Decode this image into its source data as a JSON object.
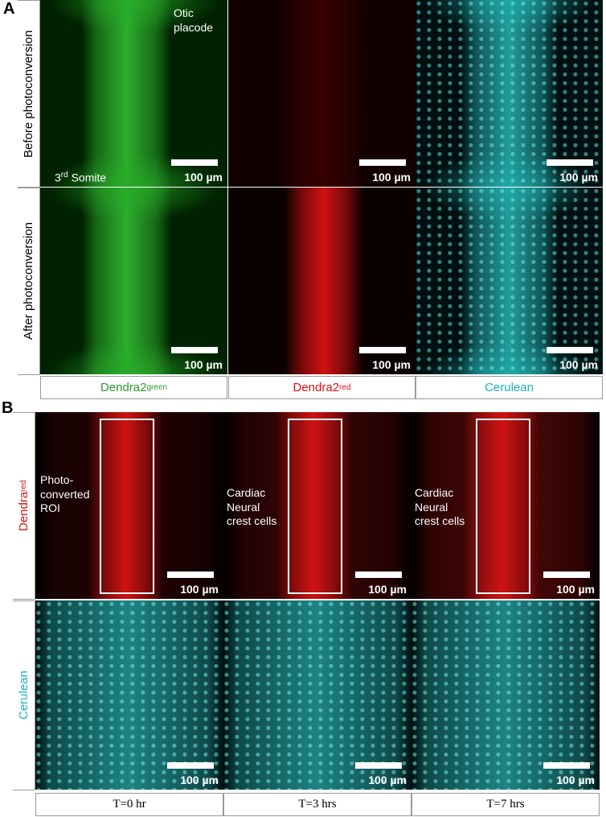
{
  "panel_a": {
    "label": "A",
    "row_labels": [
      "Before photoconversion",
      "After photoconversion"
    ],
    "column_labels": [
      {
        "text": "Dendra2",
        "sup": "green"
      },
      {
        "text": "Dendra2",
        "sup": "red"
      },
      {
        "text": "Cerulean"
      }
    ],
    "annotations": {
      "otic": "Otic\nplacode",
      "somite": {
        "text": "3",
        "sup": "rd",
        "rest": " Somite"
      }
    }
  },
  "panel_b": {
    "label": "B",
    "row_labels": [
      {
        "text": "Dendra",
        "sup": "red"
      },
      {
        "text": "Cerulean"
      }
    ],
    "column_labels": [
      "T=0 hr",
      "T=3 hrs",
      "T=7 hrs"
    ],
    "annotations": [
      "Photo-\nconverted\nROI",
      "Cardiac\nNeural\ncrest cells",
      "Cardiac\nNeural\ncrest cells"
    ]
  },
  "scale_bar": "100 µm"
}
